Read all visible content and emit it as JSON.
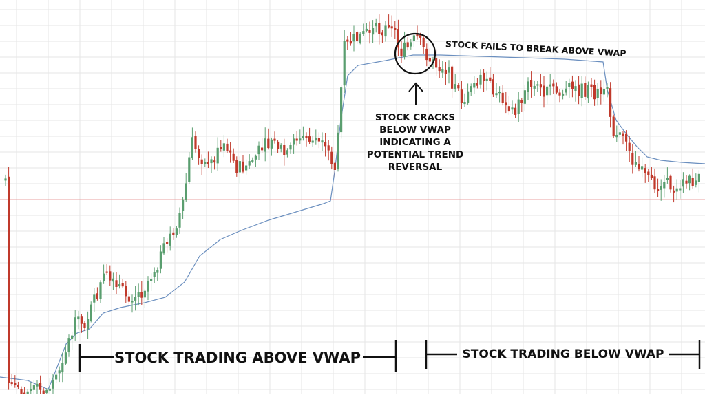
{
  "chart_data": {
    "type": "candlestick",
    "title": "",
    "xlabel": "",
    "ylabel": "",
    "grid": true,
    "colors": {
      "up": "#5a9e6f",
      "down": "#c0392b",
      "vwap": "#6b8fbf",
      "reference_line": "#e8a0a0",
      "grid": "#e6e6e6",
      "annotation": "#111111"
    },
    "annotations": {
      "vwap_fail": "STOCK FAILS TO BREAK ABOVE VWAP",
      "crack_lines": [
        "STOCK CRACKS",
        "BELOW VWAP",
        "INDICATING A",
        "POTENTIAL TREND",
        "REVERSAL"
      ],
      "trading_above": "STOCK TRADING ABOVE VWAP",
      "trading_below": "STOCK TRADING BELOW VWAP"
    }
  }
}
